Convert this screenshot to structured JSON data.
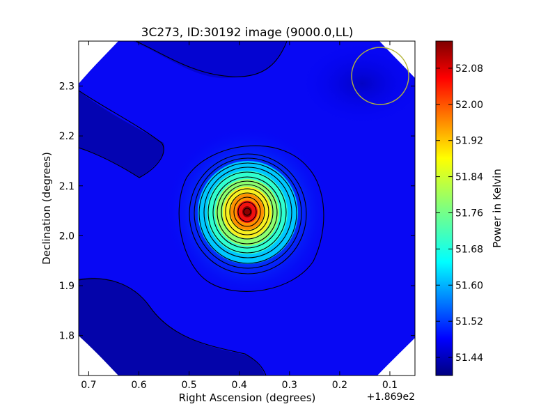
{
  "chart_data": {
    "type": "heatmap",
    "title": "3C273, ID:30192 image (9000.0,LL)",
    "xlabel": "Right Ascension (degrees)",
    "ylabel": "Declination (degrees)",
    "x_offset_label": "+1.869e2",
    "x_ticks": [
      0.7,
      0.6,
      0.5,
      0.4,
      0.3,
      0.2,
      0.1
    ],
    "x_tick_labels": [
      "0.7",
      "0.6",
      "0.5",
      "0.4",
      "0.3",
      "0.2",
      "0.1"
    ],
    "y_ticks": [
      1.8,
      1.9,
      2.0,
      2.1,
      2.2,
      2.3
    ],
    "y_tick_labels": [
      "1.8",
      "1.9",
      "2.0",
      "2.1",
      "2.2",
      "2.3"
    ],
    "xlim": [
      0.72,
      0.05
    ],
    "ylim": [
      1.72,
      2.39
    ],
    "colorbar": {
      "label": "Power in Kelvin",
      "range": [
        51.4,
        52.14
      ],
      "ticks": [
        51.44,
        51.52,
        51.6,
        51.68,
        51.76,
        51.84,
        51.92,
        52.0,
        52.08
      ],
      "tick_labels": [
        "51.44",
        "51.52",
        "51.60",
        "51.68",
        "51.76",
        "51.84",
        "51.92",
        "52.00",
        "52.08"
      ],
      "colormap": "jet"
    },
    "source": {
      "ra": 0.375,
      "dec": 2.045,
      "peak": 52.13
    },
    "beam_circle": {
      "ra": 0.112,
      "dec": 2.32,
      "color": "#b5b53c"
    },
    "background_level": 51.5
  }
}
